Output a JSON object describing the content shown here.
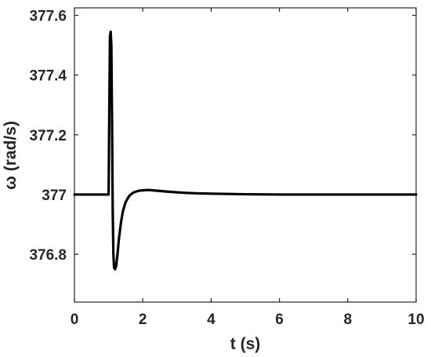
{
  "chart_data": {
    "type": "line",
    "title": "",
    "xlabel": "t (s)",
    "ylabel": "ω (rad/s)",
    "xlim": [
      0,
      10
    ],
    "ylim": [
      376.64,
      377.625
    ],
    "xticks": [
      0,
      2,
      4,
      6,
      8,
      10
    ],
    "xtick_labels": [
      "0",
      "2",
      "4",
      "6",
      "8",
      "10"
    ],
    "yticks": [
      376.8,
      377.0,
      377.2,
      377.4,
      377.6
    ],
    "ytick_labels": [
      "376.8",
      "377",
      "377.2",
      "377.4",
      "377.6"
    ],
    "grid": false,
    "legend": "none",
    "line_color": "#000000",
    "series": [
      {
        "x": [
          0,
          1.0,
          1.02,
          1.04,
          1.06,
          1.08,
          1.1,
          1.12,
          1.14,
          1.16,
          1.19,
          1.22,
          1.26,
          1.3,
          1.36,
          1.42,
          1.5,
          1.6,
          1.7,
          1.8,
          1.9,
          2.0,
          2.1,
          2.2,
          2.3,
          2.5,
          2.8,
          3.2,
          3.6,
          4.0,
          5.0,
          6.0,
          7.0,
          8.0,
          9.0,
          10.0
        ],
        "y": [
          377.0,
          377.0,
          377.28,
          377.53,
          377.545,
          377.5,
          377.25,
          376.95,
          376.8,
          376.755,
          376.75,
          376.76,
          376.8,
          376.85,
          376.905,
          376.945,
          376.975,
          376.995,
          377.005,
          377.01,
          377.013,
          377.014,
          377.015,
          377.015,
          377.014,
          377.012,
          377.009,
          377.006,
          377.004,
          377.003,
          377.001,
          377.0,
          377.0,
          377.0,
          377.0,
          377.0
        ]
      }
    ]
  }
}
